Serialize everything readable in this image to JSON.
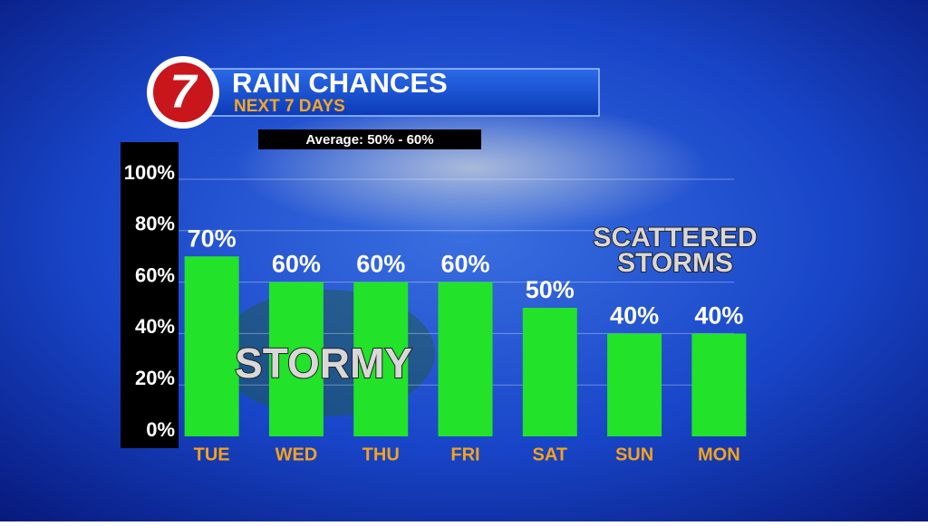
{
  "logo": "7",
  "chart_data": {
    "type": "bar",
    "title": "RAIN CHANCES",
    "subtitle": "NEXT 7 DAYS",
    "annotations": [
      "Average: 50% - 60%",
      "STORMY",
      "SCATTERED",
      "STORMS"
    ],
    "categories": [
      "TUE",
      "WED",
      "THU",
      "FRI",
      "SAT",
      "SUN",
      "MON"
    ],
    "values": [
      70,
      60,
      60,
      60,
      50,
      40,
      40
    ],
    "value_labels": [
      "70%",
      "60%",
      "60%",
      "60%",
      "50%",
      "40%",
      "40%"
    ],
    "color": "#22e22a",
    "ylim": [
      0,
      100
    ],
    "yticks": [
      {
        "value": 0,
        "label": "0%"
      },
      {
        "value": 20,
        "label": "20%"
      },
      {
        "value": 40,
        "label": "40%"
      },
      {
        "value": 60,
        "label": "60%"
      },
      {
        "value": 80,
        "label": "80%"
      },
      {
        "value": 100,
        "label": "100%"
      }
    ],
    "grid": true
  }
}
